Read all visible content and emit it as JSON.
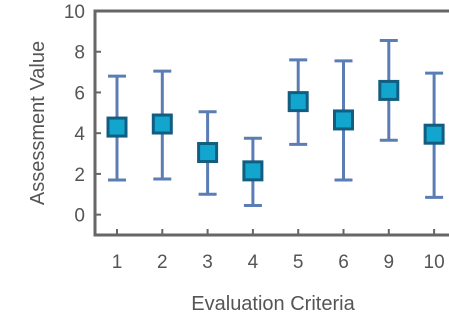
{
  "chart_data": {
    "type": "scatter",
    "title": "",
    "xlabel": "Evaluation Criteria",
    "ylabel": "Assessment Value",
    "categories": [
      "1",
      "2",
      "3",
      "4",
      "5",
      "6",
      "9",
      "10"
    ],
    "values": [
      4.3,
      4.45,
      3.05,
      2.15,
      5.55,
      4.65,
      6.1,
      3.95
    ],
    "error_lower": [
      1.7,
      1.75,
      1.0,
      0.45,
      3.45,
      1.7,
      3.65,
      0.85
    ],
    "error_upper": [
      6.8,
      7.05,
      5.05,
      3.75,
      7.6,
      7.55,
      8.55,
      6.95
    ],
    "ylim": [
      -1,
      10
    ],
    "yticks": [
      0,
      2,
      4,
      6,
      8,
      10
    ],
    "grid": false,
    "marker": "square",
    "colors": {
      "marker_fill": "#12a6cf",
      "marker_edge": "#135d80",
      "error_bar": "#5b7db5",
      "axis": "#666666",
      "text": "#555555"
    }
  }
}
